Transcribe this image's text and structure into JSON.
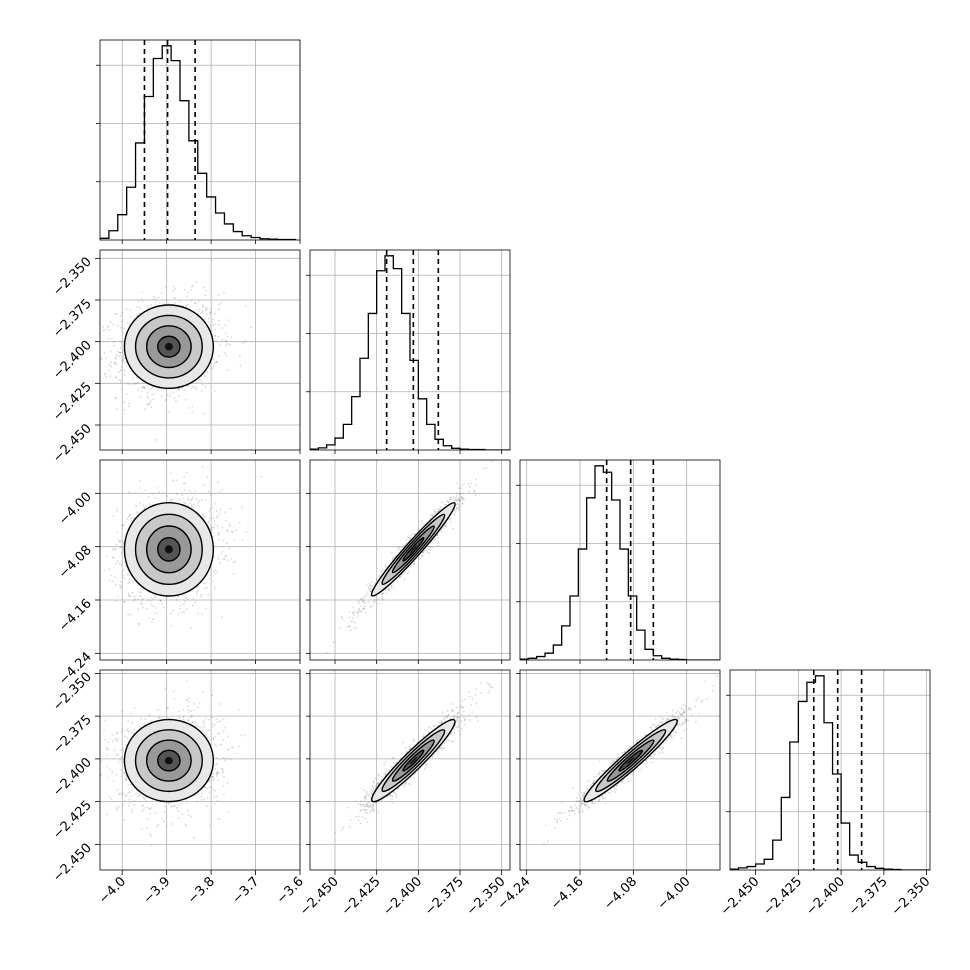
{
  "chart_data": {
    "type": "corner",
    "xlabel": "",
    "ylabel": "",
    "title": "",
    "grid": true,
    "parameters": [
      {
        "range": [
          -4.05,
          -3.6
        ],
        "ticks": [
          -4.0,
          -3.9,
          -3.8,
          -3.7,
          -3.6
        ],
        "tick_labels": [
          "−4.0",
          "−3.9",
          "−3.8",
          "−3.7",
          "−3.6"
        ],
        "quantiles": [
          -3.95,
          -3.898,
          -3.836
        ],
        "hist": {
          "start": -4.05,
          "width": 0.02,
          "counts": [
            4,
            22,
            60,
            125,
            230,
            340,
            430,
            460,
            425,
            330,
            235,
            158,
            102,
            64,
            38,
            20,
            10,
            6,
            3,
            2,
            1,
            1
          ]
        },
        "mean": -3.895,
        "sd": 0.05
      },
      {
        "range": [
          -2.465,
          -2.345
        ],
        "ticks": [
          -2.45,
          -2.425,
          -2.4,
          -2.375,
          -2.35
        ],
        "tick_labels": [
          "−2.450",
          "−2.425",
          "−2.400",
          "−2.375",
          "−2.350"
        ],
        "quantiles": [
          -2.419,
          -2.403,
          -2.388
        ],
        "hist": {
          "start": -2.465,
          "width": 0.005,
          "counts": [
            2,
            5,
            12,
            28,
            60,
            125,
            215,
            320,
            420,
            455,
            425,
            320,
            210,
            120,
            60,
            25,
            10,
            4,
            2,
            1,
            1,
            0,
            0,
            0
          ]
        },
        "mean": -2.403,
        "sd": 0.0125
      },
      {
        "range": [
          -4.25,
          -3.95
        ],
        "ticks": [
          -4.24,
          -4.16,
          -4.08,
          -4.0
        ],
        "tick_labels": [
          "−4.24",
          "−4.16",
          "−4.08",
          "−4.00"
        ],
        "quantiles": [
          -4.12,
          -4.084,
          -4.05
        ],
        "hist": {
          "start": -4.25,
          "width": 0.0125,
          "counts": [
            2,
            4,
            8,
            16,
            35,
            80,
            150,
            260,
            380,
            455,
            440,
            375,
            260,
            150,
            70,
            25,
            10,
            4,
            2,
            1,
            0,
            0,
            0,
            0
          ]
        },
        "mean": -4.084,
        "sd": 0.035
      },
      {
        "range": [
          -2.465,
          -2.348
        ],
        "ticks": [
          -2.45,
          -2.425,
          -2.4,
          -2.375,
          -2.35
        ],
        "tick_labels": [
          "−2.450",
          "−2.425",
          "−2.400",
          "−2.375",
          "−2.350"
        ],
        "quantiles": [
          -2.416,
          -2.402,
          -2.388
        ],
        "hist": {
          "start": -2.465,
          "width": 0.005,
          "counts": [
            2,
            5,
            8,
            14,
            25,
            70,
            170,
            300,
            395,
            440,
            455,
            345,
            225,
            110,
            35,
            18,
            8,
            4,
            2,
            1,
            0,
            0,
            0,
            0
          ]
        },
        "mean": -2.401,
        "sd": 0.012
      }
    ],
    "correlations": [
      [
        1,
        0.12,
        0.15,
        0.12
      ],
      [
        0.12,
        1,
        0.97,
        0.95
      ],
      [
        0.15,
        0.97,
        1,
        0.96
      ],
      [
        0.12,
        0.95,
        0.96,
        1
      ]
    ]
  }
}
